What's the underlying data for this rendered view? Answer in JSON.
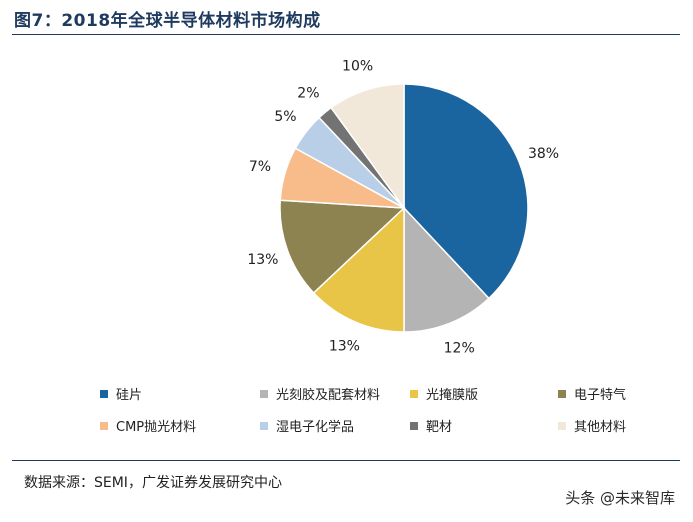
{
  "title": "图7：2018年全球半导体材料市场构成",
  "chart_data": {
    "type": "pie",
    "title": "",
    "slices": [
      {
        "label": "硅片",
        "value": 38,
        "display": "38%",
        "color": "#1a64a0"
      },
      {
        "label": "光刻胶及配套材料",
        "value": 12,
        "display": "12%",
        "color": "#b4b4b4"
      },
      {
        "label": "光掩膜版",
        "value": 13,
        "display": "13%",
        "color": "#e8c547"
      },
      {
        "label": "电子特气",
        "value": 13,
        "display": "13%",
        "color": "#8c8350"
      },
      {
        "label": "CMP抛光材料",
        "value": 7,
        "display": "7%",
        "color": "#f7bc8a"
      },
      {
        "label": "湿电子化学品",
        "value": 5,
        "display": "5%",
        "color": "#b9cfe8"
      },
      {
        "label": "靶材",
        "value": 2,
        "display": "2%",
        "color": "#737373"
      },
      {
        "label": "其他材料",
        "value": 10,
        "display": "10%",
        "color": "#f1e8da"
      }
    ],
    "legend_placement": "bottom"
  },
  "source": "数据来源：SEMI，广发证券发展研究中心",
  "watermark": "头条 @未来智库"
}
